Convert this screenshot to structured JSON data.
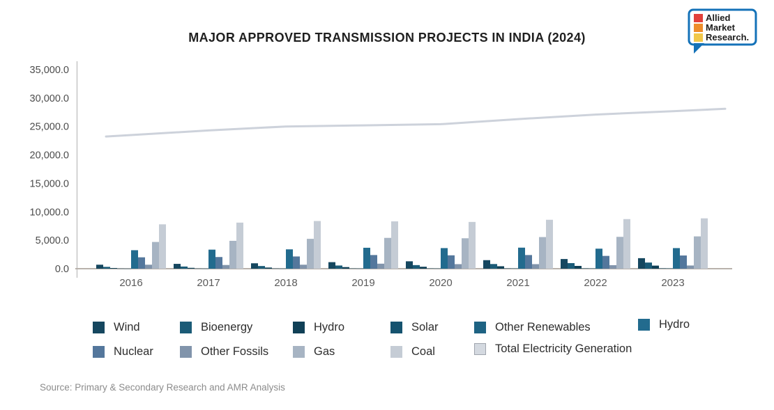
{
  "header": {
    "title": "MAJOR APPROVED TRANSMISSION PROJECTS IN INDIA (2024)"
  },
  "logo": {
    "line1": "Allied",
    "line2": "Market",
    "line3": "Research.",
    "border_color": "#1472b8",
    "square_colors": [
      "#e2403a",
      "#ee8d2b",
      "#f1c84a"
    ]
  },
  "chart_data": {
    "type": "bar",
    "title": "MAJOR APPROVED TRANSMISSION PROJECTS IN INDIA (2024)",
    "categories": [
      "2016",
      "2017",
      "2018",
      "2019",
      "2020",
      "2021",
      "2022",
      "2023"
    ],
    "series": [
      {
        "name": "Wind",
        "type": "bar",
        "color": "#16475f",
        "values": [
          700,
          850,
          950,
          1150,
          1300,
          1500,
          1700,
          1850
        ]
      },
      {
        "name": "Bioenergy",
        "type": "bar",
        "color": "#1b5b77",
        "values": [
          320,
          380,
          470,
          560,
          630,
          820,
          980,
          1080
        ]
      },
      {
        "name": "Hydro",
        "type": "bar",
        "color": "#104056",
        "values": [
          120,
          150,
          200,
          280,
          340,
          430,
          490,
          540
        ]
      },
      {
        "name": "Solar",
        "type": "bar",
        "color": "#15536f",
        "values": [
          30,
          35,
          40,
          45,
          50,
          55,
          60,
          65
        ]
      },
      {
        "name": "Other Renewables",
        "type": "bar",
        "color": "#1e6383",
        "values": [
          20,
          25,
          30,
          35,
          40,
          45,
          50,
          55
        ]
      },
      {
        "name": "Hydro",
        "type": "bar",
        "color": "#226b8e",
        "values": [
          3250,
          3350,
          3400,
          3680,
          3620,
          3700,
          3520,
          3620
        ]
      },
      {
        "name": "Nuclear",
        "type": "bar",
        "color": "#54779c",
        "values": [
          2000,
          2050,
          2150,
          2400,
          2350,
          2400,
          2250,
          2320
        ]
      },
      {
        "name": "Other Fossils",
        "type": "bar",
        "color": "#8194ab",
        "values": [
          700,
          650,
          700,
          880,
          800,
          800,
          620,
          560
        ]
      },
      {
        "name": "Gas",
        "type": "bar",
        "color": "#a7b4c3",
        "values": [
          4700,
          4900,
          5250,
          5420,
          5350,
          5560,
          5600,
          5680
        ]
      },
      {
        "name": "Coal",
        "type": "bar",
        "color": "#c5ccd5",
        "values": [
          7800,
          8100,
          8380,
          8320,
          8220,
          8600,
          8720,
          8850
        ]
      },
      {
        "name": "Total Electricity Generation",
        "type": "line",
        "color": "#cdd2db",
        "values": [
          23500,
          24300,
          25000,
          25200,
          25400,
          26300,
          27100,
          27700
        ]
      }
    ],
    "xlabel": "",
    "ylabel": "",
    "ylim": [
      0,
      35000
    ],
    "ytick_step": 5000,
    "ytick_labels": [
      "0.0",
      "5,000.0",
      "10,000.0",
      "15,000.0",
      "20,000.0",
      "25,000.0",
      "30,000.0",
      "35,000.0"
    ],
    "grid": false,
    "legend_position": "bottom",
    "axis_colors": {
      "y_axis": "#c9c9c9",
      "x_axis": "#b9b2ac",
      "tick_text": "#4c4c4c",
      "year_text": "#5a5a5a"
    }
  },
  "footer": {
    "source": "Source: Primary & Secondary Research and AMR Analysis"
  }
}
